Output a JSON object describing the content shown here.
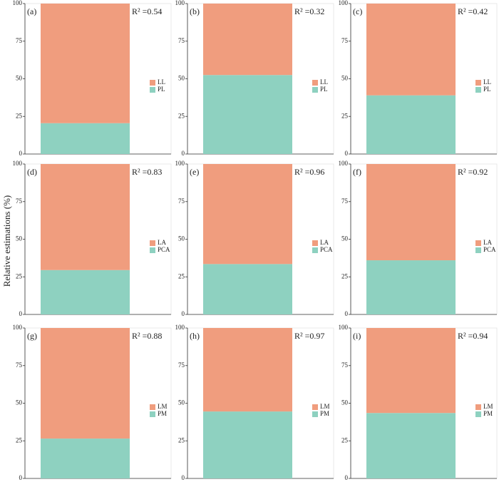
{
  "ylabel": "Relative estimations    (%)",
  "chart_data": [
    {
      "type": "bar",
      "panel": "(a)",
      "annotation": "R² =0.54",
      "ylim": [
        0,
        100
      ],
      "yticks": [
        0,
        25,
        50,
        75,
        100
      ],
      "series": [
        {
          "name": "PL",
          "color": "#8ed1c0",
          "values": [
            20.5
          ]
        },
        {
          "name": "LL",
          "color": "#f09d7e",
          "values": [
            79.5
          ]
        }
      ]
    },
    {
      "type": "bar",
      "panel": "(b)",
      "annotation": "R² =0.32",
      "ylim": [
        0,
        100
      ],
      "yticks": [
        0,
        25,
        50,
        75,
        100
      ],
      "series": [
        {
          "name": "PL",
          "color": "#8ed1c0",
          "values": [
            52.5
          ]
        },
        {
          "name": "LL",
          "color": "#f09d7e",
          "values": [
            47.5
          ]
        }
      ]
    },
    {
      "type": "bar",
      "panel": "(c)",
      "annotation": "R² =0.42",
      "ylim": [
        0,
        100
      ],
      "yticks": [
        0,
        25,
        50,
        75,
        100
      ],
      "series": [
        {
          "name": "PL",
          "color": "#8ed1c0",
          "values": [
            39
          ]
        },
        {
          "name": "LL",
          "color": "#f09d7e",
          "values": [
            61
          ]
        }
      ]
    },
    {
      "type": "bar",
      "panel": "(d)",
      "annotation": "R² =0.83",
      "ylim": [
        0,
        100
      ],
      "yticks": [
        0,
        25,
        50,
        75,
        100
      ],
      "series": [
        {
          "name": "PCA",
          "color": "#8ed1c0",
          "values": [
            29.5
          ]
        },
        {
          "name": "LA",
          "color": "#f09d7e",
          "values": [
            70.5
          ]
        }
      ]
    },
    {
      "type": "bar",
      "panel": "(e)",
      "annotation": "R² =0.96",
      "ylim": [
        0,
        100
      ],
      "yticks": [
        0,
        25,
        50,
        75,
        100
      ],
      "series": [
        {
          "name": "PCA",
          "color": "#8ed1c0",
          "values": [
            33.5
          ]
        },
        {
          "name": "LA",
          "color": "#f09d7e",
          "values": [
            66.5
          ]
        }
      ]
    },
    {
      "type": "bar",
      "panel": "(f)",
      "annotation": "R² =0.92",
      "ylim": [
        0,
        100
      ],
      "yticks": [
        0,
        25,
        50,
        75,
        100
      ],
      "series": [
        {
          "name": "PCA",
          "color": "#8ed1c0",
          "values": [
            36
          ]
        },
        {
          "name": "LA",
          "color": "#f09d7e",
          "values": [
            64
          ]
        }
      ]
    },
    {
      "type": "bar",
      "panel": "(g)",
      "annotation": "R² =0.88",
      "ylim": [
        0,
        100
      ],
      "yticks": [
        0,
        25,
        50,
        75,
        100
      ],
      "series": [
        {
          "name": "PM",
          "color": "#8ed1c0",
          "values": [
            26.5
          ]
        },
        {
          "name": "LM",
          "color": "#f09d7e",
          "values": [
            73.5
          ]
        }
      ]
    },
    {
      "type": "bar",
      "panel": "(h)",
      "annotation": "R² =0.97",
      "ylim": [
        0,
        100
      ],
      "yticks": [
        0,
        25,
        50,
        75,
        100
      ],
      "series": [
        {
          "name": "PM",
          "color": "#8ed1c0",
          "values": [
            44.5
          ]
        },
        {
          "name": "LM",
          "color": "#f09d7e",
          "values": [
            55.5
          ]
        }
      ]
    },
    {
      "type": "bar",
      "panel": "(i)",
      "annotation": "R² =0.94",
      "ylim": [
        0,
        100
      ],
      "yticks": [
        0,
        25,
        50,
        75,
        100
      ],
      "series": [
        {
          "name": "PM",
          "color": "#8ed1c0",
          "values": [
            43.5
          ]
        },
        {
          "name": "LM",
          "color": "#f09d7e",
          "values": [
            56.5
          ]
        }
      ]
    }
  ]
}
